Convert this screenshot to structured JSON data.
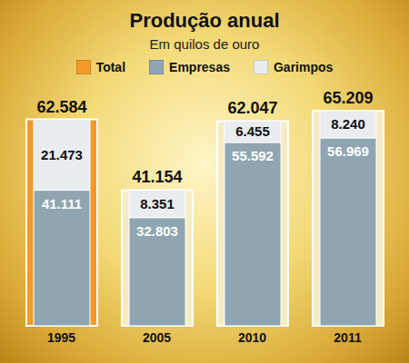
{
  "chart_data": {
    "type": "bar",
    "title": "Produção anual",
    "subtitle": "Em quilos de ouro",
    "categories": [
      "1995",
      "2005",
      "2010",
      "2011"
    ],
    "stacked": true,
    "data_labels": true,
    "tick_labels": "x",
    "legend": "top",
    "series": [
      {
        "name": "Total",
        "type": "total",
        "color": "#f39a2b",
        "colors": [
          "#f39a2b",
          "#f6ecc4",
          "#f6ecc4",
          "#f6ecc4"
        ],
        "values": [
          62584,
          41154,
          62047,
          65209
        ],
        "value_labels": [
          "62.584",
          "41.154",
          "62.047",
          "65.209"
        ]
      },
      {
        "name": "Empresas",
        "type": "bar",
        "color": "#8fa6b2",
        "values": [
          41111,
          32803,
          55592,
          56969
        ],
        "value_labels": [
          "41.111",
          "32.803",
          "55.592",
          "56.969"
        ]
      },
      {
        "name": "Garimpos",
        "type": "bar",
        "color": "#e9edf0",
        "values": [
          21473,
          8351,
          6455,
          8240
        ],
        "value_labels": [
          "21.473",
          "8.351",
          "6.455",
          "8.240"
        ]
      }
    ]
  }
}
